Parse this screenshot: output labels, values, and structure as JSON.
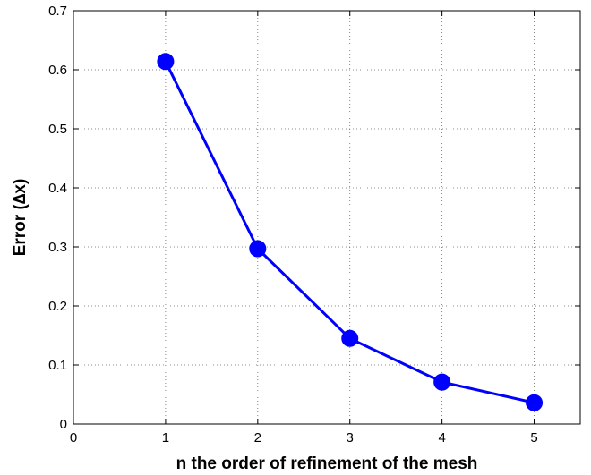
{
  "chart_data": {
    "type": "line",
    "title": "",
    "xlabel": "n the order of refinement of the mesh",
    "ylabel": "Error (∆x)",
    "xlim": [
      0,
      5.5
    ],
    "ylim": [
      0,
      0.7
    ],
    "xticks": [
      0,
      1,
      2,
      3,
      4,
      5
    ],
    "yticks": [
      0,
      0.1,
      0.2,
      0.3,
      0.4,
      0.5,
      0.6,
      0.7
    ],
    "xtick_labels": [
      "0",
      "1",
      "2",
      "3",
      "4",
      "5"
    ],
    "ytick_labels": [
      "0",
      "0.1",
      "0.2",
      "0.3",
      "0.4",
      "0.5",
      "0.6",
      "0.7"
    ],
    "grid": true,
    "legend": "none",
    "series": [
      {
        "x": [
          1,
          2,
          3,
          4,
          5
        ],
        "y": [
          0.614,
          0.297,
          0.145,
          0.071,
          0.036
        ],
        "color": "#0000ff",
        "marker": "circle"
      }
    ]
  }
}
